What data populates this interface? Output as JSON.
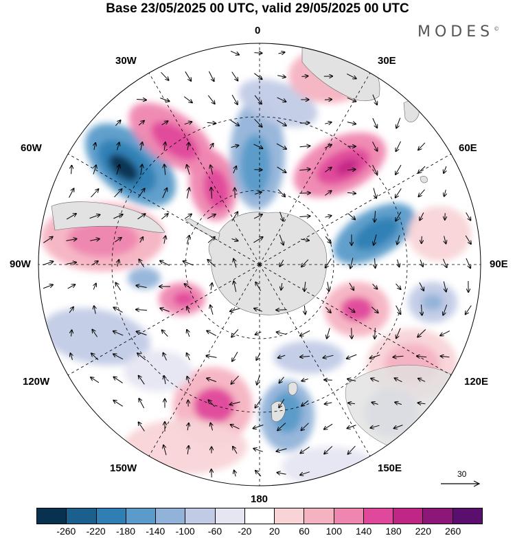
{
  "title": "Base 23/05/2025 00 UTC, valid 29/05/2025 00 UTC",
  "brand": "MODES",
  "brand_mark": "©",
  "longitude_labels": {
    "lon_0": "0",
    "lon_30e": "30E",
    "lon_60e": "60E",
    "lon_90e": "90E",
    "lon_120e": "120E",
    "lon_150e": "150E",
    "lon_180": "180",
    "lon_150w": "150W",
    "lon_120w": "120W",
    "lon_90w": "90W",
    "lon_60w": "60W",
    "lon_30w": "30W"
  },
  "reference_vector": {
    "value": "30"
  },
  "colorbar": {
    "ticks": [
      "-260",
      "-220",
      "-180",
      "-140",
      "-100",
      "-60",
      "-20",
      "20",
      "60",
      "100",
      "140",
      "180",
      "220",
      "260"
    ],
    "colors": [
      "#08304f",
      "#1b5f8c",
      "#2f7fb5",
      "#5a9bc9",
      "#92b3d9",
      "#c2cbe6",
      "#e6e6f2",
      "#ffffff",
      "#f8d4d7",
      "#f5b3c2",
      "#ef86b0",
      "#e0499b",
      "#c02685",
      "#8c1778",
      "#5a0e6e"
    ]
  },
  "map_colors": {
    "land": "#e2e2e2",
    "ocean": "#ffffff",
    "graticule": "#000000"
  }
}
